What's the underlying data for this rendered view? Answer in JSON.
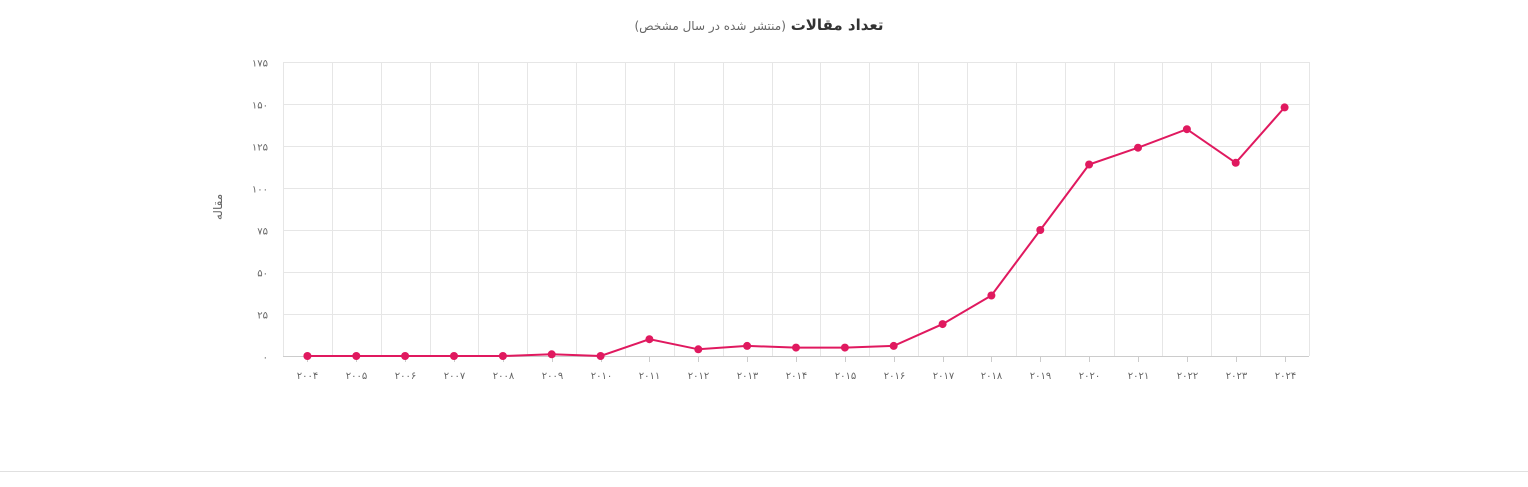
{
  "chart_data": {
    "type": "line",
    "title": "تعداد مقالات",
    "subtitle": "(منتشر شده در سال مشخص)",
    "ylabel": "مقاله",
    "xlabel": "",
    "x": [
      "۲۰۰۴",
      "۲۰۰۵",
      "۲۰۰۶",
      "۲۰۰۷",
      "۲۰۰۸",
      "۲۰۰۹",
      "۲۰۱۰",
      "۲۰۱۱",
      "۲۰۱۲",
      "۲۰۱۳",
      "۲۰۱۴",
      "۲۰۱۵",
      "۲۰۱۶",
      "۲۰۱۷",
      "۲۰۱۸",
      "۲۰۱۹",
      "۲۰۲۰",
      "۲۰۲۱",
      "۲۰۲۲",
      "۲۰۲۳",
      "۲۰۲۴"
    ],
    "series": [
      {
        "values": [
          0,
          0,
          0,
          0,
          0,
          1,
          0,
          10,
          4,
          6,
          5,
          5,
          6,
          19,
          36,
          75,
          114,
          124,
          135,
          115,
          148
        ]
      }
    ],
    "ylim": [
      0,
      175
    ],
    "yticks": [
      0,
      25,
      50,
      75,
      100,
      125,
      150,
      175
    ],
    "ytick_labels": [
      "۰",
      "۲۵",
      "۵۰",
      "۷۵",
      "۱۰۰",
      "۱۲۵",
      "۱۵۰",
      "۱۷۵"
    ],
    "grid": true,
    "legend": "none",
    "color": "#e0195f"
  }
}
